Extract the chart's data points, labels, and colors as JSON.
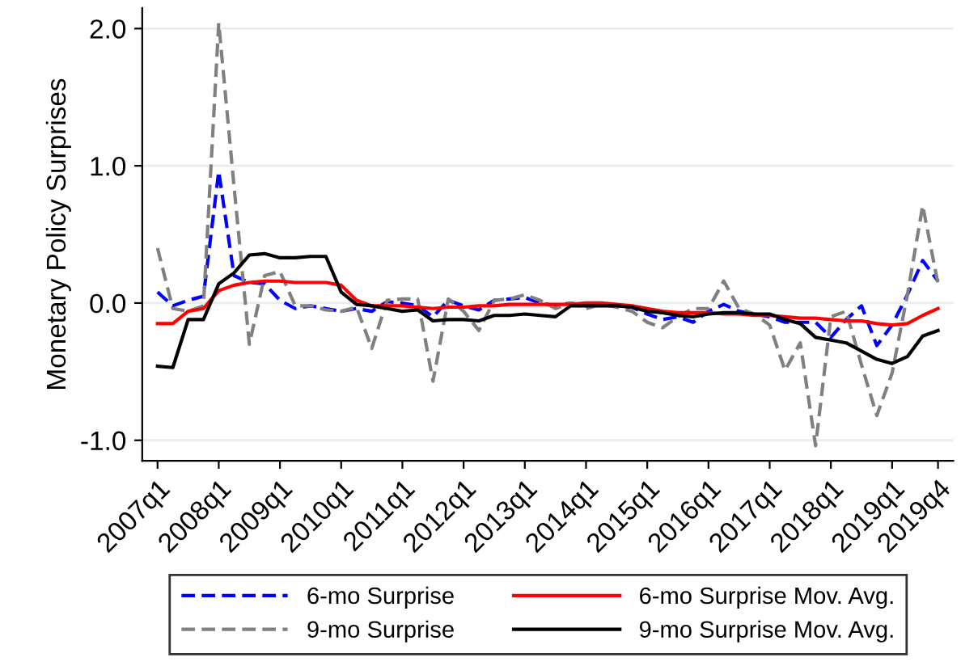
{
  "chart_data": {
    "type": "line",
    "ylabel": "Monetary Policy Surprises",
    "categories": [
      "2007q1",
      null,
      null,
      null,
      "2008q1",
      null,
      null,
      null,
      "2009q1",
      null,
      null,
      null,
      "2010q1",
      null,
      null,
      null,
      "2011q1",
      null,
      null,
      null,
      "2012q1",
      null,
      null,
      null,
      "2013q1",
      null,
      null,
      null,
      "2014q1",
      null,
      null,
      null,
      "2015q1",
      null,
      null,
      null,
      "2016q1",
      null,
      null,
      null,
      "2017q1",
      null,
      null,
      null,
      "2018q1",
      null,
      null,
      null,
      "2019q1",
      null,
      null,
      "2019q4"
    ],
    "series": [
      {
        "name": "6-mo Surprise",
        "color": "#0000ff",
        "line_style": "dashed",
        "values": [
          0.08,
          -0.02,
          0.02,
          0.05,
          0.96,
          0.2,
          0.15,
          0.14,
          0.02,
          -0.04,
          -0.02,
          -0.04,
          -0.06,
          -0.04,
          -0.06,
          0.01,
          0.0,
          -0.02,
          -0.1,
          0.02,
          -0.02,
          -0.05,
          0.02,
          0.03,
          0.04,
          0.0,
          -0.02,
          0.0,
          -0.02,
          0.0,
          -0.02,
          -0.03,
          -0.08,
          -0.12,
          -0.1,
          -0.14,
          -0.06,
          -0.01,
          -0.06,
          -0.08,
          -0.1,
          -0.14,
          -0.14,
          -0.14,
          -0.25,
          -0.12,
          -0.02,
          -0.31,
          -0.16,
          0.06,
          0.31,
          0.16
        ]
      },
      {
        "name": "9-mo Surprise",
        "color": "#808080",
        "line_style": "dashed",
        "values": [
          0.4,
          -0.04,
          -0.06,
          -0.02,
          2.04,
          0.85,
          -0.3,
          0.2,
          0.23,
          -0.02,
          -0.02,
          -0.05,
          -0.06,
          -0.03,
          -0.33,
          0.02,
          0.03,
          0.03,
          -0.57,
          0.03,
          -0.06,
          -0.2,
          0.02,
          0.03,
          0.06,
          0.02,
          -0.04,
          0.0,
          -0.04,
          -0.01,
          -0.03,
          -0.06,
          -0.14,
          -0.18,
          -0.1,
          -0.04,
          -0.04,
          0.16,
          -0.04,
          -0.08,
          -0.16,
          -0.49,
          -0.29,
          -1.04,
          -0.1,
          -0.06,
          -0.45,
          -0.82,
          -0.51,
          0.06,
          0.71,
          0.14
        ]
      },
      {
        "name": "6-mo Surprise Mov. Avg.",
        "color": "#ff0000",
        "line_style": "solid",
        "values": [
          -0.15,
          -0.15,
          -0.06,
          -0.04,
          0.09,
          0.13,
          0.15,
          0.16,
          0.16,
          0.15,
          0.15,
          0.15,
          0.13,
          0.02,
          -0.02,
          -0.02,
          -0.02,
          -0.03,
          -0.04,
          -0.03,
          -0.03,
          -0.02,
          -0.02,
          -0.01,
          -0.01,
          -0.01,
          -0.01,
          -0.01,
          0.0,
          0.0,
          -0.01,
          -0.02,
          -0.04,
          -0.06,
          -0.07,
          -0.07,
          -0.07,
          -0.08,
          -0.08,
          -0.09,
          -0.09,
          -0.1,
          -0.11,
          -0.11,
          -0.12,
          -0.13,
          -0.13,
          -0.15,
          -0.16,
          -0.15,
          -0.09,
          -0.04
        ]
      },
      {
        "name": "9-mo Surprise Mov. Avg.",
        "color": "#000000",
        "line_style": "solid",
        "values": [
          -0.46,
          -0.47,
          -0.12,
          -0.12,
          0.14,
          0.22,
          0.35,
          0.36,
          0.33,
          0.33,
          0.34,
          0.34,
          0.08,
          -0.01,
          -0.02,
          -0.04,
          -0.06,
          -0.05,
          -0.13,
          -0.12,
          -0.12,
          -0.13,
          -0.09,
          -0.09,
          -0.08,
          -0.09,
          -0.1,
          -0.02,
          -0.02,
          -0.02,
          -0.02,
          -0.03,
          -0.06,
          -0.07,
          -0.09,
          -0.1,
          -0.08,
          -0.07,
          -0.07,
          -0.08,
          -0.08,
          -0.12,
          -0.15,
          -0.25,
          -0.27,
          -0.29,
          -0.35,
          -0.41,
          -0.44,
          -0.39,
          -0.24,
          -0.2
        ]
      }
    ],
    "ylim": [
      -1.15,
      2.15
    ],
    "yticks": [
      {
        "value": -1,
        "label": "-1.0"
      },
      {
        "value": 0,
        "label": "0.0"
      },
      {
        "value": 1,
        "label": "1.0"
      },
      {
        "value": 2,
        "label": "2.0"
      }
    ],
    "grid": "y",
    "legend": "bottom",
    "marker": "none"
  }
}
